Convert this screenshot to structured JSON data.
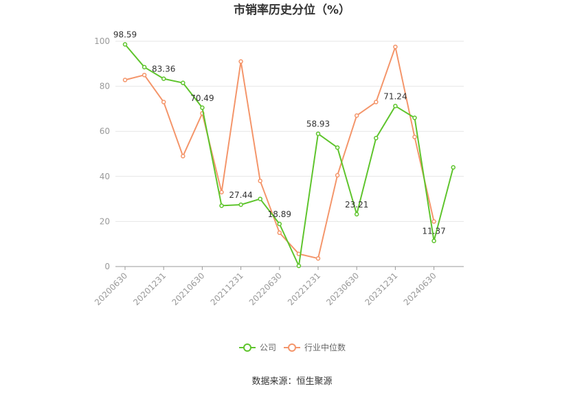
{
  "chart_data": {
    "type": "line",
    "title": "市销率历史分位（%）",
    "source": "数据来源：恒生聚源",
    "ylim": [
      0,
      100
    ],
    "yticks": [
      "0",
      "20",
      "40",
      "60",
      "80",
      "100"
    ],
    "xtick_labels": [
      "20200630",
      "20201231",
      "20210630",
      "20211231",
      "20220630",
      "20221231",
      "20230630",
      "20231231",
      "20240630"
    ],
    "x": [
      "20200630",
      "20200930",
      "20201231",
      "20210331",
      "20210630",
      "20210930",
      "20211231",
      "20220331",
      "20220630",
      "20220930",
      "20221231",
      "20230331",
      "20230630",
      "20230930",
      "20231231",
      "20240331",
      "20240630",
      "20240930"
    ],
    "grid": true,
    "legend_position": "bottom",
    "series": [
      {
        "name": "公司",
        "color": "#5ec42c",
        "values": [
          98.59,
          88.5,
          83.36,
          81.5,
          70.49,
          27.0,
          27.44,
          30.0,
          18.89,
          0.3,
          58.93,
          52.8,
          23.21,
          57.0,
          71.24,
          66.0,
          11.37,
          44.0
        ],
        "labels": [
          "98.59",
          "",
          "83.36",
          "",
          "70.49",
          "",
          "27.44",
          "",
          "18.89",
          "",
          "58.93",
          "",
          "23.21",
          "",
          "71.24",
          "",
          "11.37",
          ""
        ]
      },
      {
        "name": "行业中位数",
        "color": "#f4956a",
        "values": [
          82.8,
          85.0,
          73.0,
          49.0,
          68.0,
          33.0,
          91.0,
          38.0,
          15.0,
          5.6,
          3.6,
          40.5,
          67.0,
          73.0,
          97.5,
          57.5,
          20.0,
          null
        ]
      }
    ]
  }
}
